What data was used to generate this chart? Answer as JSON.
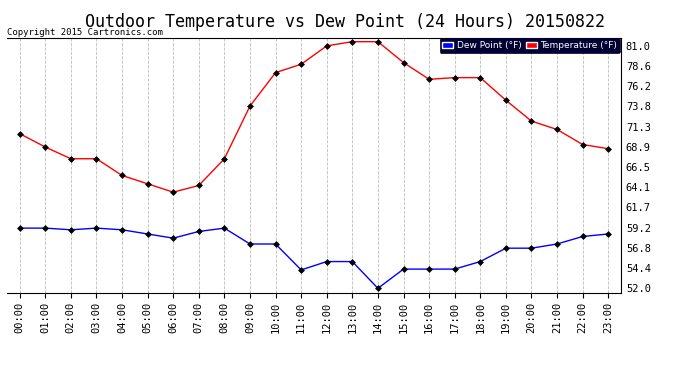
{
  "title": "Outdoor Temperature vs Dew Point (24 Hours) 20150822",
  "copyright": "Copyright 2015 Cartronics.com",
  "hours": [
    "00:00",
    "01:00",
    "02:00",
    "03:00",
    "04:00",
    "05:00",
    "06:00",
    "07:00",
    "08:00",
    "09:00",
    "10:00",
    "11:00",
    "12:00",
    "13:00",
    "14:00",
    "15:00",
    "16:00",
    "17:00",
    "18:00",
    "19:00",
    "20:00",
    "21:00",
    "22:00",
    "23:00"
  ],
  "temperature": [
    70.5,
    68.9,
    67.5,
    67.5,
    65.5,
    64.5,
    63.5,
    64.3,
    67.5,
    73.8,
    77.8,
    78.8,
    81.0,
    81.5,
    81.5,
    79.0,
    77.0,
    77.2,
    77.2,
    74.5,
    72.0,
    71.0,
    69.2,
    68.7
  ],
  "dew_point": [
    59.2,
    59.2,
    59.0,
    59.2,
    59.0,
    58.5,
    58.0,
    58.8,
    59.2,
    57.3,
    57.3,
    54.2,
    55.2,
    55.2,
    52.0,
    54.3,
    54.3,
    54.3,
    55.2,
    56.8,
    56.8,
    57.3,
    58.2,
    58.5
  ],
  "temp_color": "#ff0000",
  "dew_color": "#0000ff",
  "marker_color": "#000000",
  "bg_color": "#ffffff",
  "grid_color": "#aaaaaa",
  "ylim": [
    51.5,
    82.0
  ],
  "yticks": [
    52.0,
    54.4,
    56.8,
    59.2,
    61.7,
    64.1,
    66.5,
    68.9,
    71.3,
    73.8,
    76.2,
    78.6,
    81.0
  ],
  "legend_dew_bg": "#0000ff",
  "legend_temp_bg": "#ff0000",
  "title_fontsize": 12,
  "label_fontsize": 7.5,
  "copyright_fontsize": 6.5
}
